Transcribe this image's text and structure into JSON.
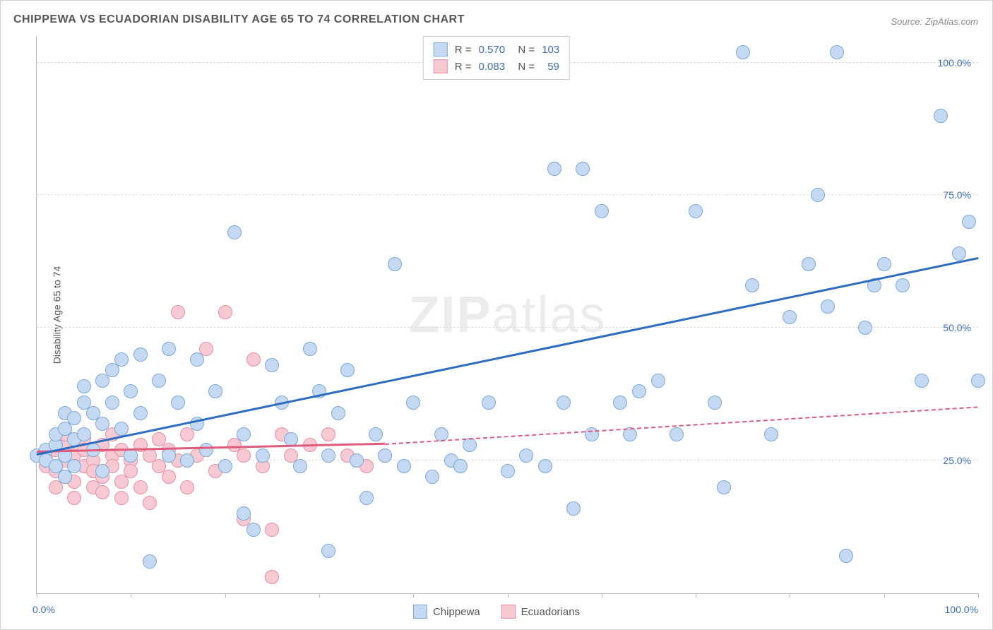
{
  "title": "CHIPPEWA VS ECUADORIAN DISABILITY AGE 65 TO 74 CORRELATION CHART",
  "source": "Source: ZipAtlas.com",
  "ylabel": "Disability Age 65 to 74",
  "watermark_bold": "ZIP",
  "watermark_rest": "atlas",
  "axis": {
    "x_min_label": "0.0%",
    "x_max_label": "100.0%",
    "y_ticks": [
      {
        "v": 25,
        "label": "25.0%"
      },
      {
        "v": 50,
        "label": "50.0%"
      },
      {
        "v": 75,
        "label": "75.0%"
      },
      {
        "v": 100,
        "label": "100.0%"
      }
    ],
    "x_tick_positions": [
      0,
      10,
      20,
      30,
      40,
      50,
      60,
      70,
      80,
      90,
      100
    ],
    "xlim": [
      0,
      100
    ],
    "ylim": [
      0,
      105
    ]
  },
  "series": {
    "chippewa": {
      "label": "Chippewa",
      "fill": "#c5daf2",
      "stroke": "#7ba8d9",
      "line_color": "#2d6cc0",
      "R": "0.570",
      "N": "103",
      "marker_radius": 10,
      "trend": {
        "x1": 0,
        "y1": 26,
        "x2": 100,
        "y2": 63,
        "dash_after_x": 100
      },
      "points": [
        [
          0,
          26
        ],
        [
          1,
          27
        ],
        [
          1,
          25
        ],
        [
          2,
          28
        ],
        [
          2,
          24
        ],
        [
          2,
          30
        ],
        [
          3,
          31
        ],
        [
          3,
          26
        ],
        [
          3,
          22
        ],
        [
          3,
          34
        ],
        [
          4,
          33
        ],
        [
          4,
          29
        ],
        [
          4,
          24
        ],
        [
          5,
          36
        ],
        [
          5,
          30
        ],
        [
          5,
          39
        ],
        [
          6,
          27
        ],
        [
          6,
          34
        ],
        [
          7,
          40
        ],
        [
          7,
          23
        ],
        [
          7,
          32
        ],
        [
          8,
          42
        ],
        [
          8,
          36
        ],
        [
          9,
          44
        ],
        [
          9,
          31
        ],
        [
          10,
          38
        ],
        [
          10,
          26
        ],
        [
          11,
          45
        ],
        [
          11,
          34
        ],
        [
          12,
          6
        ],
        [
          13,
          40
        ],
        [
          14,
          26
        ],
        [
          14,
          46
        ],
        [
          15,
          36
        ],
        [
          16,
          25
        ],
        [
          17,
          32
        ],
        [
          17,
          44
        ],
        [
          18,
          27
        ],
        [
          19,
          38
        ],
        [
          20,
          24
        ],
        [
          21,
          68
        ],
        [
          22,
          15
        ],
        [
          22,
          30
        ],
        [
          23,
          12
        ],
        [
          24,
          26
        ],
        [
          25,
          43
        ],
        [
          26,
          36
        ],
        [
          27,
          29
        ],
        [
          28,
          24
        ],
        [
          29,
          46
        ],
        [
          30,
          38
        ],
        [
          31,
          8
        ],
        [
          31,
          26
        ],
        [
          32,
          34
        ],
        [
          33,
          42
        ],
        [
          34,
          25
        ],
        [
          35,
          18
        ],
        [
          36,
          30
        ],
        [
          37,
          26
        ],
        [
          38,
          62
        ],
        [
          39,
          24
        ],
        [
          40,
          36
        ],
        [
          42,
          22
        ],
        [
          43,
          30
        ],
        [
          44,
          25
        ],
        [
          45,
          24
        ],
        [
          46,
          28
        ],
        [
          48,
          36
        ],
        [
          50,
          23
        ],
        [
          52,
          26
        ],
        [
          54,
          24
        ],
        [
          55,
          80
        ],
        [
          56,
          36
        ],
        [
          57,
          16
        ],
        [
          58,
          80
        ],
        [
          59,
          30
        ],
        [
          60,
          72
        ],
        [
          62,
          36
        ],
        [
          63,
          30
        ],
        [
          64,
          38
        ],
        [
          66,
          40
        ],
        [
          68,
          30
        ],
        [
          70,
          72
        ],
        [
          72,
          36
        ],
        [
          73,
          20
        ],
        [
          75,
          102
        ],
        [
          76,
          58
        ],
        [
          78,
          30
        ],
        [
          80,
          52
        ],
        [
          82,
          62
        ],
        [
          83,
          75
        ],
        [
          84,
          54
        ],
        [
          85,
          102
        ],
        [
          86,
          7
        ],
        [
          88,
          50
        ],
        [
          89,
          58
        ],
        [
          90,
          62
        ],
        [
          92,
          58
        ],
        [
          94,
          40
        ],
        [
          96,
          90
        ],
        [
          98,
          64
        ],
        [
          99,
          70
        ],
        [
          100,
          40
        ]
      ]
    },
    "ecuadorians": {
      "label": "Ecuadorians",
      "fill": "#f6c9d3",
      "stroke": "#e790a5",
      "line_color": "#e05a7c",
      "R": "0.083",
      "N": "59",
      "marker_radius": 10,
      "trend": {
        "x1": 0,
        "y1": 26.5,
        "x2": 37,
        "y2": 28,
        "dash_to_x": 100,
        "dash_to_y": 35
      },
      "points": [
        [
          1,
          26
        ],
        [
          1,
          24
        ],
        [
          2,
          27
        ],
        [
          2,
          23
        ],
        [
          2,
          20
        ],
        [
          3,
          28
        ],
        [
          3,
          25
        ],
        [
          3,
          22
        ],
        [
          3,
          30
        ],
        [
          4,
          26
        ],
        [
          4,
          21
        ],
        [
          4,
          18
        ],
        [
          5,
          29
        ],
        [
          5,
          24
        ],
        [
          5,
          27
        ],
        [
          6,
          25
        ],
        [
          6,
          20
        ],
        [
          6,
          23
        ],
        [
          7,
          28
        ],
        [
          7,
          22
        ],
        [
          7,
          19
        ],
        [
          8,
          26
        ],
        [
          8,
          24
        ],
        [
          8,
          30
        ],
        [
          9,
          27
        ],
        [
          9,
          21
        ],
        [
          9,
          18
        ],
        [
          10,
          25
        ],
        [
          10,
          23
        ],
        [
          11,
          28
        ],
        [
          11,
          20
        ],
        [
          12,
          26
        ],
        [
          12,
          17
        ],
        [
          13,
          24
        ],
        [
          13,
          29
        ],
        [
          14,
          22
        ],
        [
          14,
          27
        ],
        [
          15,
          53
        ],
        [
          15,
          25
        ],
        [
          16,
          20
        ],
        [
          16,
          30
        ],
        [
          17,
          26
        ],
        [
          18,
          46
        ],
        [
          19,
          23
        ],
        [
          20,
          53
        ],
        [
          21,
          28
        ],
        [
          22,
          14
        ],
        [
          22,
          26
        ],
        [
          23,
          44
        ],
        [
          24,
          24
        ],
        [
          25,
          12
        ],
        [
          25,
          3
        ],
        [
          26,
          30
        ],
        [
          27,
          26
        ],
        [
          29,
          28
        ],
        [
          31,
          30
        ],
        [
          33,
          26
        ],
        [
          35,
          24
        ],
        [
          37,
          26
        ]
      ]
    }
  },
  "colors": {
    "title": "#555555",
    "axis_label": "#3b6db5",
    "grid": "#dddddd",
    "border": "#bbbbbb",
    "background": "#ffffff"
  }
}
